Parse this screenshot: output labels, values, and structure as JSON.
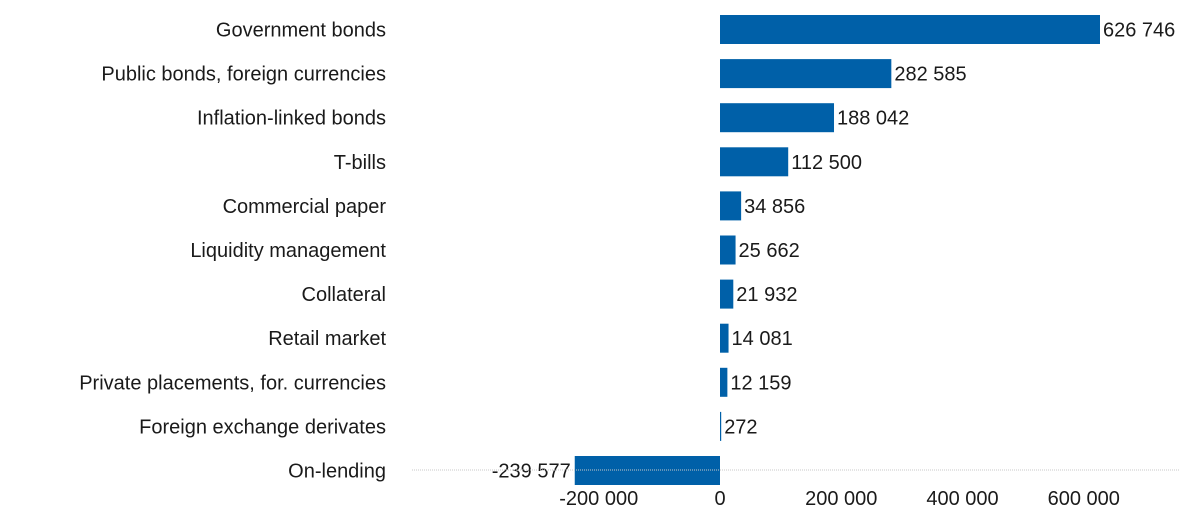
{
  "chart_data": {
    "type": "bar",
    "orientation": "horizontal",
    "title": "",
    "xlabel": "",
    "ylabel": "",
    "xlim": [
      -300000,
      800000
    ],
    "grid": false,
    "legend": "none",
    "bar_color": "#0060a8",
    "categories": [
      "Government bonds",
      "Public bonds, foreign currencies",
      "Inflation-linked bonds",
      "T-bills",
      "Commercial paper",
      "Liquidity management",
      "Collateral",
      "Retail market",
      "Private placements, for. currencies",
      "Foreign exchange derivates",
      "On-lending"
    ],
    "values": [
      626746,
      282585,
      188042,
      112500,
      34856,
      25662,
      21932,
      14081,
      12159,
      272,
      -239577
    ],
    "value_labels": [
      "626 746",
      "282 585",
      "188 042",
      "112 500",
      "34 856",
      "25 662",
      "21 932",
      "14 081",
      "12 159",
      "272",
      "-239 577"
    ],
    "x_ticks": [
      -200000,
      0,
      200000,
      400000,
      600000
    ],
    "x_tick_labels": [
      "-200 000",
      "0",
      "200 000",
      "400 000",
      "600 000"
    ]
  }
}
